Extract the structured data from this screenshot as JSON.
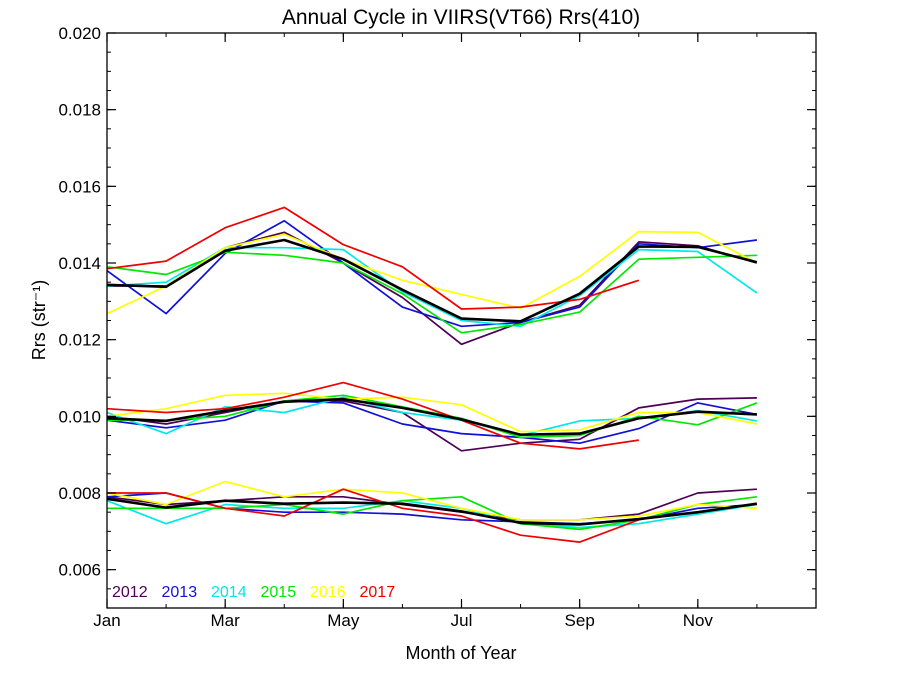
{
  "chart_data": {
    "type": "line",
    "title": "Annual Cycle in VIIRS(VT66) Rrs(410)",
    "xlabel": "Month of Year",
    "ylabel": "Rrs (str⁻¹)",
    "xlim": [
      1,
      13
    ],
    "ylim": [
      0.005,
      0.02
    ],
    "x_ticks": [
      {
        "value": 1,
        "label": "Jan"
      },
      {
        "value": 3,
        "label": "Mar"
      },
      {
        "value": 5,
        "label": "May"
      },
      {
        "value": 7,
        "label": "Jul"
      },
      {
        "value": 9,
        "label": "Sep"
      },
      {
        "value": 11,
        "label": "Nov"
      }
    ],
    "y_ticks": [
      {
        "value": 0.006,
        "label": "0.006"
      },
      {
        "value": 0.008,
        "label": "0.008"
      },
      {
        "value": 0.01,
        "label": "0.010"
      },
      {
        "value": 0.012,
        "label": "0.012"
      },
      {
        "value": 0.014,
        "label": "0.014"
      },
      {
        "value": 0.016,
        "label": "0.016"
      },
      {
        "value": 0.018,
        "label": "0.018"
      },
      {
        "value": 0.02,
        "label": "0.020"
      }
    ],
    "grid": false,
    "legend_position": "bottom-left",
    "series": [
      {
        "name": "2012",
        "color": "#4B0055",
        "group": "high",
        "x": [
          1,
          2,
          3,
          4,
          5,
          6,
          7,
          8,
          9,
          10,
          11,
          12
        ],
        "values": [
          0.0134,
          0.0134,
          0.0144,
          0.0148,
          0.014,
          0.0131,
          0.01188,
          0.01245,
          0.0129,
          0.01455,
          0.01445,
          0.014
        ]
      },
      {
        "name": "2013",
        "color": "#1010D8",
        "group": "high",
        "x": [
          1,
          2,
          3,
          4,
          5,
          6,
          7,
          8,
          9,
          10,
          11,
          12
        ],
        "values": [
          0.0138,
          0.01268,
          0.01425,
          0.0151,
          0.014,
          0.01285,
          0.01235,
          0.01245,
          0.01285,
          0.0145,
          0.0144,
          0.0146
        ]
      },
      {
        "name": "2014",
        "color": "#00E8E8",
        "group": "high",
        "x": [
          1,
          2,
          3,
          4,
          5,
          6,
          7,
          8,
          9,
          10,
          11,
          12
        ],
        "values": [
          0.0134,
          0.0135,
          0.0144,
          0.0144,
          0.01435,
          0.01325,
          0.0125,
          0.01235,
          0.01315,
          0.01435,
          0.0143,
          0.01322
        ]
      },
      {
        "name": "2015",
        "color": "#00E800",
        "group": "high",
        "x": [
          1,
          2,
          3,
          4,
          5,
          6,
          7,
          8,
          9,
          10,
          11,
          12
        ],
        "values": [
          0.0139,
          0.0137,
          0.01428,
          0.0142,
          0.014,
          0.0132,
          0.01218,
          0.0124,
          0.01272,
          0.0141,
          0.01415,
          0.0142
        ]
      },
      {
        "name": "2016",
        "color": "#FFFF00",
        "group": "high",
        "x": [
          1,
          2,
          3,
          4,
          5,
          6,
          7,
          8,
          9,
          10,
          11,
          12
        ],
        "values": [
          0.01268,
          0.0134,
          0.0144,
          0.01475,
          0.0141,
          0.01355,
          0.01318,
          0.01282,
          0.01365,
          0.01482,
          0.0148,
          0.014
        ]
      },
      {
        "name": "2017",
        "color": "#F00000",
        "group": "high",
        "x": [
          1,
          2,
          3,
          4,
          5,
          6,
          7,
          8,
          9,
          10
        ],
        "values": [
          0.01385,
          0.01405,
          0.01492,
          0.01545,
          0.01448,
          0.0139,
          0.0128,
          0.01285,
          0.01305,
          0.01355
        ]
      },
      {
        "name": "",
        "color": "#000000",
        "group": "high",
        "x": [
          1,
          2,
          3,
          4,
          5,
          6,
          7,
          8,
          9,
          10,
          11,
          12
        ],
        "values": [
          0.01343,
          0.01338,
          0.01432,
          0.0146,
          0.0141,
          0.0133,
          0.01255,
          0.01248,
          0.0132,
          0.01443,
          0.01442,
          0.01402
        ]
      },
      {
        "name": "2012",
        "color": "#4B0055",
        "group": "mid",
        "x": [
          1,
          2,
          3,
          4,
          5,
          6,
          7,
          8,
          9,
          10,
          11,
          12
        ],
        "values": [
          0.01,
          0.0098,
          0.0101,
          0.0104,
          0.0104,
          0.0101,
          0.0091,
          0.0093,
          0.0094,
          0.01022,
          0.01045,
          0.01048
        ]
      },
      {
        "name": "2013",
        "color": "#1010D8",
        "group": "mid",
        "x": [
          1,
          2,
          3,
          4,
          5,
          6,
          7,
          8,
          9,
          10,
          11,
          12
        ],
        "values": [
          0.0099,
          0.0097,
          0.0099,
          0.0104,
          0.01035,
          0.0098,
          0.00955,
          0.00945,
          0.0093,
          0.00968,
          0.01035,
          0.01005
        ]
      },
      {
        "name": "2014",
        "color": "#00E8E8",
        "group": "mid",
        "x": [
          1,
          2,
          3,
          4,
          5,
          6,
          7,
          8,
          9,
          10,
          11,
          12
        ],
        "values": [
          0.0101,
          0.00955,
          0.01025,
          0.0101,
          0.0105,
          0.0101,
          0.0099,
          0.0095,
          0.00988,
          0.00995,
          0.01015,
          0.00988
        ]
      },
      {
        "name": "2015",
        "color": "#00E800",
        "group": "mid",
        "x": [
          1,
          2,
          3,
          4,
          5,
          6,
          7,
          8,
          9,
          10,
          11,
          12
        ],
        "values": [
          0.0099,
          0.0099,
          0.01,
          0.0104,
          0.01055,
          0.01025,
          0.00995,
          0.00945,
          0.0095,
          0.01,
          0.00978,
          0.01035
        ]
      },
      {
        "name": "2016",
        "color": "#FFFF00",
        "group": "mid",
        "x": [
          1,
          2,
          3,
          4,
          5,
          6,
          7,
          8,
          9,
          10,
          11,
          12
        ],
        "values": [
          0.01,
          0.0102,
          0.01055,
          0.0106,
          0.01045,
          0.0105,
          0.0103,
          0.0096,
          0.00965,
          0.0101,
          0.0101,
          0.0098
        ]
      },
      {
        "name": "2017",
        "color": "#F00000",
        "group": "mid",
        "x": [
          1,
          2,
          3,
          4,
          5,
          6,
          7,
          8,
          9,
          10
        ],
        "values": [
          0.0102,
          0.0101,
          0.0102,
          0.0105,
          0.01088,
          0.01045,
          0.0099,
          0.0093,
          0.00915,
          0.00938
        ]
      },
      {
        "name": "",
        "color": "#000000",
        "group": "mid",
        "x": [
          1,
          2,
          3,
          4,
          5,
          6,
          7,
          8,
          9,
          10,
          11,
          12
        ],
        "values": [
          0.00995,
          0.00988,
          0.01015,
          0.01038,
          0.01045,
          0.01022,
          0.00992,
          0.00952,
          0.00955,
          0.00995,
          0.01012,
          0.01005
        ]
      },
      {
        "name": "2012",
        "color": "#4B0055",
        "group": "low",
        "x": [
          1,
          2,
          3,
          4,
          5,
          6,
          7,
          8,
          9,
          10,
          11,
          12
        ],
        "values": [
          0.0079,
          0.0077,
          0.0078,
          0.0079,
          0.0079,
          0.0077,
          0.0075,
          0.0073,
          0.0073,
          0.00745,
          0.008,
          0.0081
        ]
      },
      {
        "name": "2013",
        "color": "#1010D8",
        "group": "low",
        "x": [
          1,
          2,
          3,
          4,
          5,
          6,
          7,
          8,
          9,
          10,
          11,
          12
        ],
        "values": [
          0.0079,
          0.008,
          0.0076,
          0.0075,
          0.0075,
          0.00745,
          0.0073,
          0.00725,
          0.0072,
          0.0073,
          0.0076,
          0.0077
        ]
      },
      {
        "name": "2014",
        "color": "#00E8E8",
        "group": "low",
        "x": [
          1,
          2,
          3,
          4,
          5,
          6,
          7,
          8,
          9,
          10,
          11,
          12
        ],
        "values": [
          0.0078,
          0.0072,
          0.0077,
          0.0076,
          0.0076,
          0.0078,
          0.0076,
          0.0072,
          0.0071,
          0.0072,
          0.00745,
          0.0077
        ]
      },
      {
        "name": "2015",
        "color": "#00E800",
        "group": "low",
        "x": [
          1,
          2,
          3,
          4,
          5,
          6,
          7,
          8,
          9,
          10,
          11,
          12
        ],
        "values": [
          0.0076,
          0.0076,
          0.0076,
          0.0077,
          0.00745,
          0.0078,
          0.0079,
          0.0072,
          0.00705,
          0.0073,
          0.0077,
          0.0079
        ]
      },
      {
        "name": "2016",
        "color": "#FFFF00",
        "group": "low",
        "x": [
          1,
          2,
          3,
          4,
          5,
          6,
          7,
          8,
          9,
          10,
          11,
          12
        ],
        "values": [
          0.008,
          0.0077,
          0.0083,
          0.0079,
          0.0081,
          0.008,
          0.0076,
          0.0073,
          0.0073,
          0.0074,
          0.0077,
          0.0076
        ]
      },
      {
        "name": "2017",
        "color": "#F00000",
        "group": "low",
        "x": [
          1,
          2,
          3,
          4,
          5,
          6,
          7,
          8,
          9,
          10
        ],
        "values": [
          0.008,
          0.008,
          0.0076,
          0.0074,
          0.0081,
          0.0076,
          0.0074,
          0.0069,
          0.00672,
          0.0073
        ]
      },
      {
        "name": "",
        "color": "#000000",
        "group": "low",
        "x": [
          1,
          2,
          3,
          4,
          5,
          6,
          7,
          8,
          9,
          10,
          11,
          12
        ],
        "values": [
          0.00785,
          0.00762,
          0.0078,
          0.00772,
          0.00775,
          0.00772,
          0.00752,
          0.00722,
          0.00718,
          0.00732,
          0.0075,
          0.00772
        ]
      }
    ],
    "legend": [
      {
        "label": "2012",
        "color": "#4B0055"
      },
      {
        "label": "2013",
        "color": "#1010D8"
      },
      {
        "label": "2014",
        "color": "#00E8E8"
      },
      {
        "label": "2015",
        "color": "#00E800"
      },
      {
        "label": "2016",
        "color": "#FFFF00"
      },
      {
        "label": "2017",
        "color": "#F00000"
      }
    ]
  }
}
